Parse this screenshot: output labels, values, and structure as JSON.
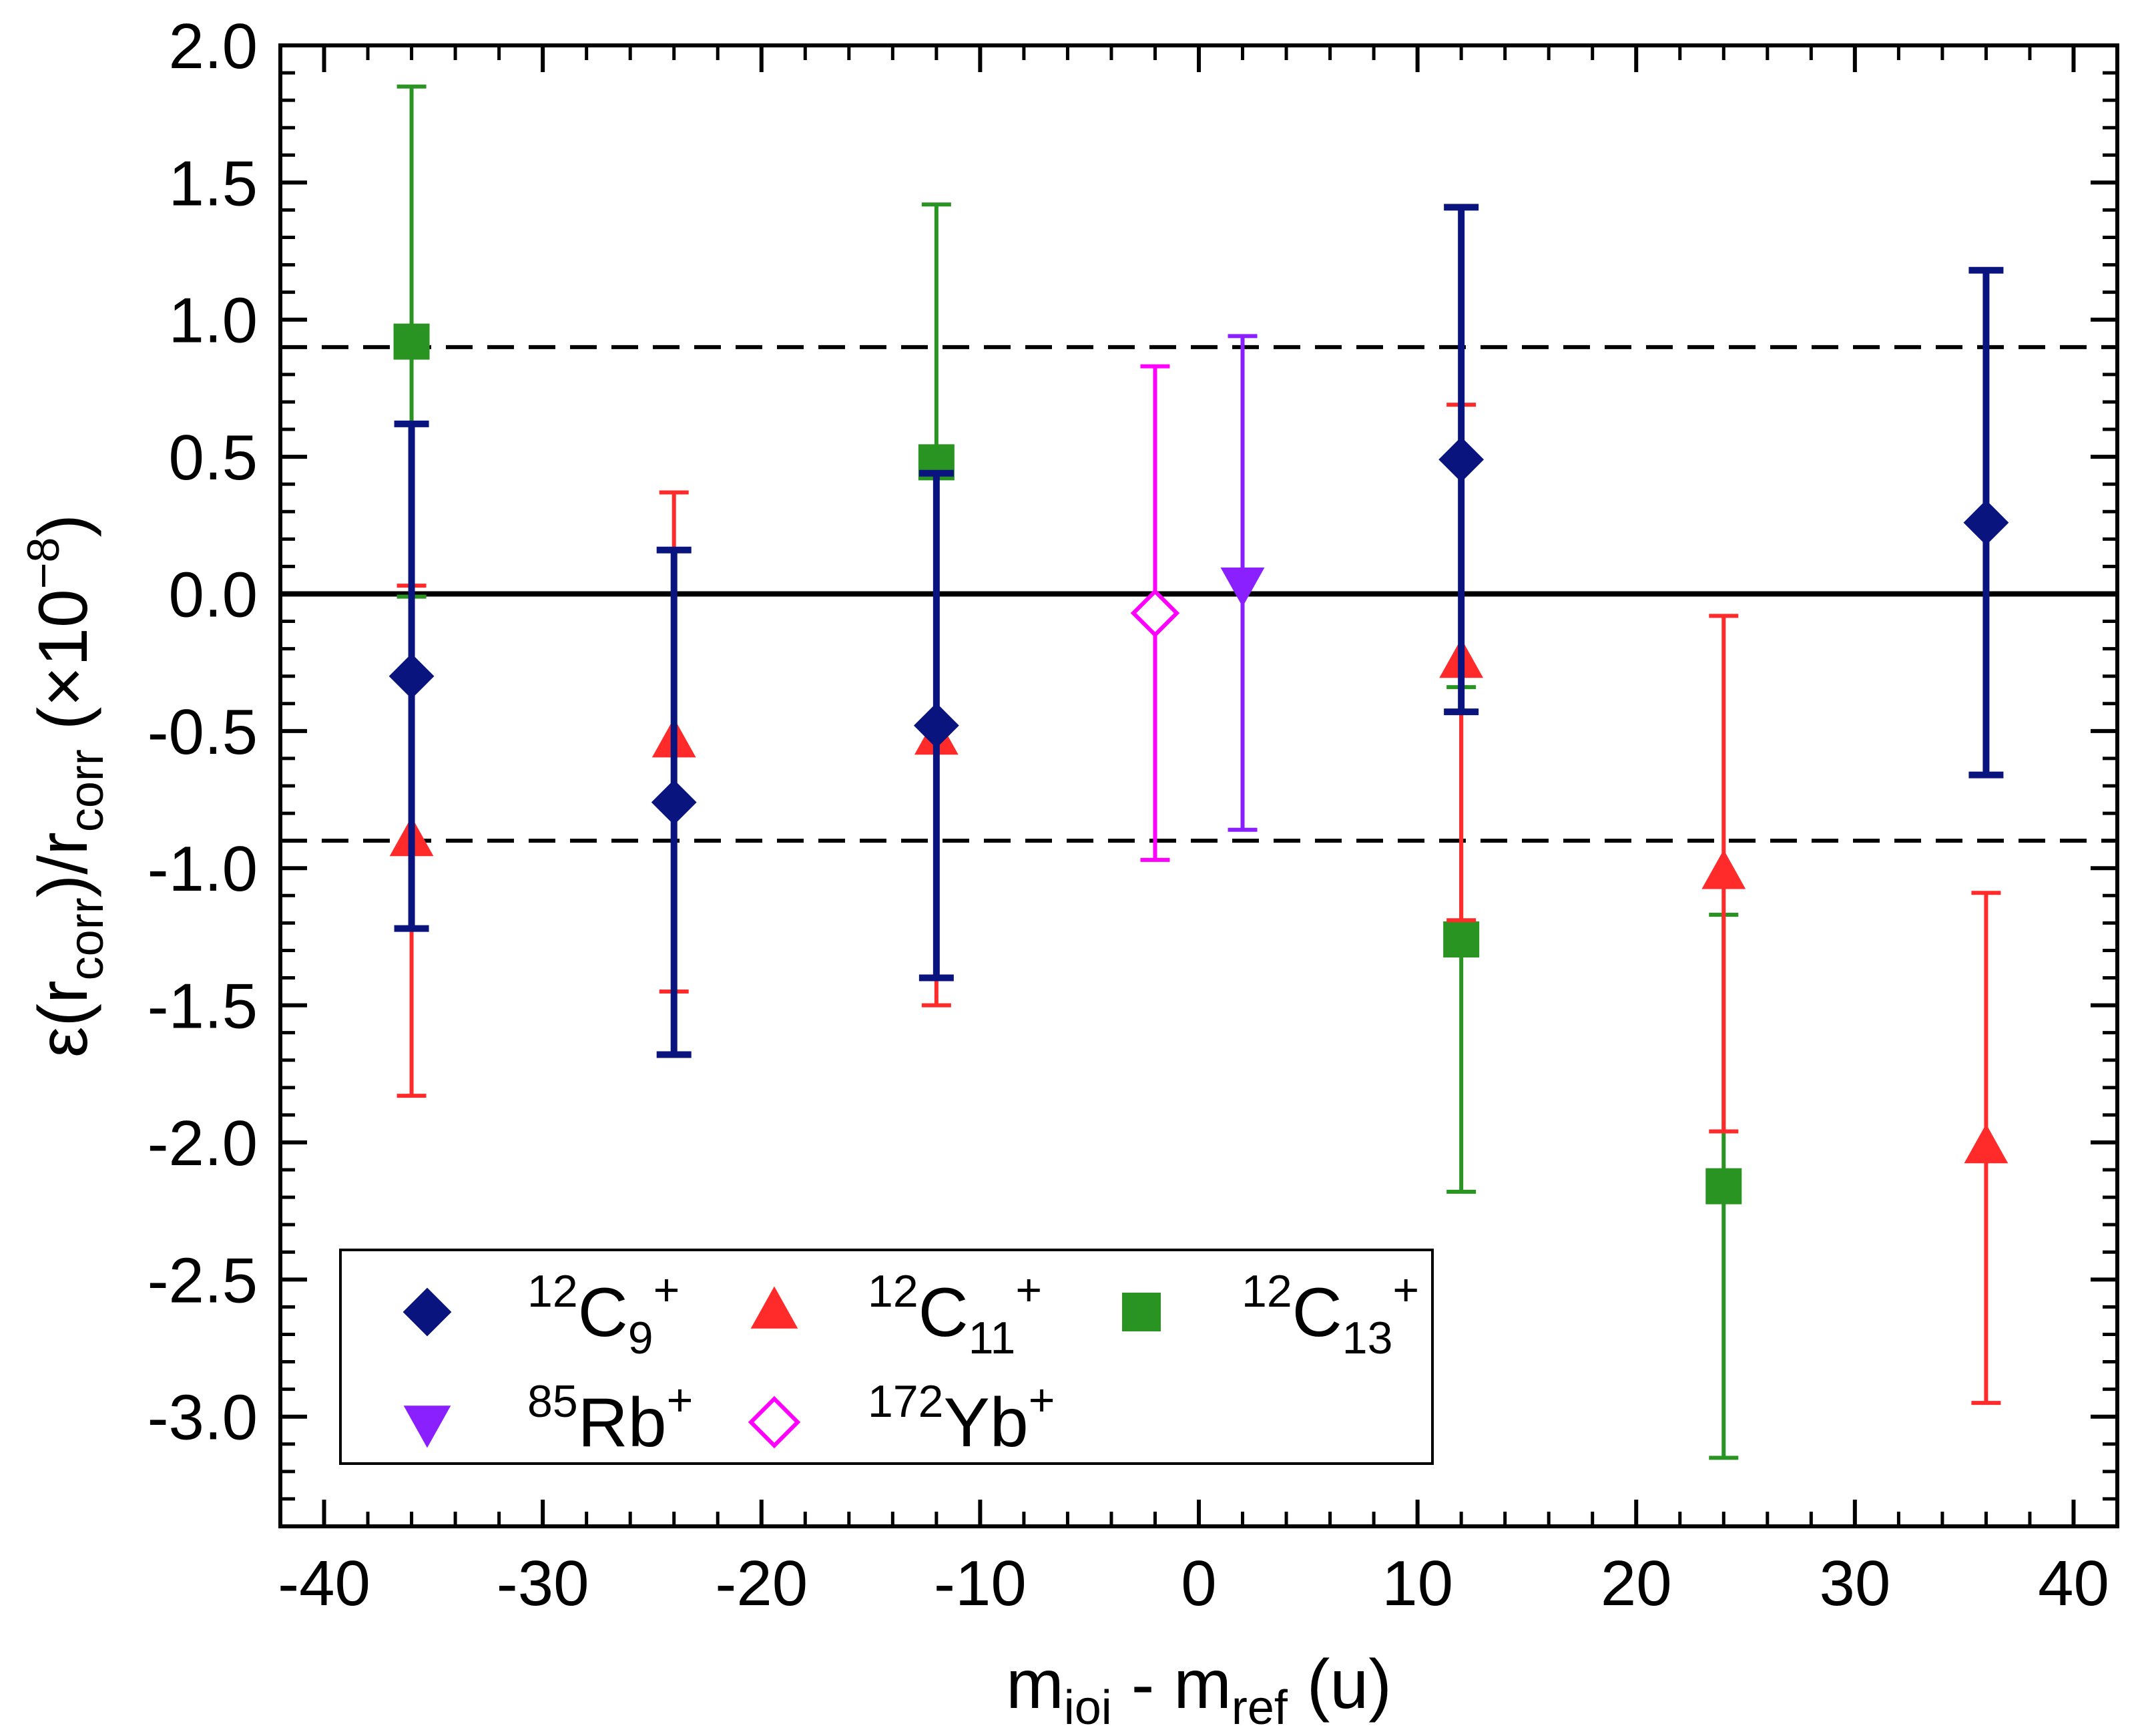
{
  "chart_data": {
    "type": "scatter",
    "title": "",
    "xlabel": {
      "main": "m",
      "sub1": "ioi",
      "mid": " - m",
      "sub2": "ref",
      "tail": " (u)"
    },
    "ylabel": {
      "p1": "ε(r",
      "sub1": "corr",
      "p2": ")/r",
      "sub2": "corr",
      "p3": " (×10",
      "sup": "−8",
      "p4": ")"
    },
    "xlim": [
      -42,
      42
    ],
    "ylim": [
      -3.4,
      2.0
    ],
    "xticks": [
      -40,
      -30,
      -20,
      -10,
      0,
      10,
      20,
      30,
      40
    ],
    "xtick_labels": [
      "-40",
      "-30",
      "-20",
      "-10",
      "0",
      "10",
      "20",
      "30",
      "40"
    ],
    "yticks": [
      2.0,
      1.5,
      1.0,
      0.5,
      0.0,
      -0.5,
      -1.0,
      -1.5,
      -2.0,
      -2.5,
      -3.0
    ],
    "ytick_labels": [
      "2.0",
      "1.5",
      "1.0",
      "0.5",
      "0.0",
      "-0.5",
      "-1.0",
      "-1.5",
      "-2.0",
      "-2.5",
      "-3.0"
    ],
    "reference_lines": [
      {
        "y": 0.0,
        "style": "solid",
        "color": "#000000"
      },
      {
        "y": 0.9,
        "style": "dashed",
        "color": "#000000"
      },
      {
        "y": -0.9,
        "style": "dashed",
        "color": "#000000"
      }
    ],
    "series": [
      {
        "name": "12C13+",
        "label": {
          "sup": "12",
          "base": "C",
          "sub": "13",
          "sup2": "+"
        },
        "marker": "square",
        "filled": true,
        "color": "#2a9422",
        "points": [
          {
            "x": -36,
            "y": 0.92,
            "err": 0.93
          },
          {
            "x": -12,
            "y": 0.48,
            "err": 0.94
          },
          {
            "x": 12,
            "y": -1.26,
            "err": 0.92
          },
          {
            "x": 24,
            "y": -2.16,
            "err": 0.99
          }
        ]
      },
      {
        "name": "12C11+",
        "label": {
          "sup": "12",
          "base": "C",
          "sub": "11",
          "sup2": "+"
        },
        "marker": "triangle-up",
        "filled": true,
        "color": "#ff2a2a",
        "points": [
          {
            "x": -36,
            "y": -0.9,
            "err": 0.93
          },
          {
            "x": -24,
            "y": -0.54,
            "err": 0.91
          },
          {
            "x": -12,
            "y": -0.53,
            "err": 0.97
          },
          {
            "x": 12,
            "y": -0.25,
            "err": 0.94
          },
          {
            "x": 24,
            "y": -1.02,
            "err": 0.94
          },
          {
            "x": 36,
            "y": -2.02,
            "err": 0.93
          }
        ]
      },
      {
        "name": "12C9+",
        "label": {
          "sup": "12",
          "base": "C",
          "sub": "9",
          "sup2": "+"
        },
        "marker": "diamond",
        "filled": true,
        "color": "#0a147e",
        "points": [
          {
            "x": -36,
            "y": -0.3,
            "err": 0.92
          },
          {
            "x": -24,
            "y": -0.76,
            "err": 0.92
          },
          {
            "x": -12,
            "y": -0.48,
            "err": 0.92
          },
          {
            "x": 12,
            "y": 0.49,
            "err": 0.92
          },
          {
            "x": 36,
            "y": 0.26,
            "err": 0.92
          }
        ]
      },
      {
        "name": "85Rb+",
        "label": {
          "sup": "85",
          "base": "Rb",
          "sub": "",
          "sup2": "+"
        },
        "marker": "triangle-down",
        "filled": true,
        "color": "#8a1fff",
        "points": [
          {
            "x": 2,
            "y": 0.04,
            "err": 0.9
          }
        ]
      },
      {
        "name": "172Yb+",
        "label": {
          "sup": "172",
          "base": "Yb",
          "sub": "",
          "sup2": "+"
        },
        "marker": "diamond",
        "filled": false,
        "color": "#ff00ff",
        "points": [
          {
            "x": -2,
            "y": -0.07,
            "err": 0.9
          }
        ]
      }
    ],
    "legend": {
      "position": "bottom-left",
      "order": [
        "12C9+",
        "12C11+",
        "12C13+",
        "85Rb+",
        "172Yb+"
      ]
    }
  }
}
